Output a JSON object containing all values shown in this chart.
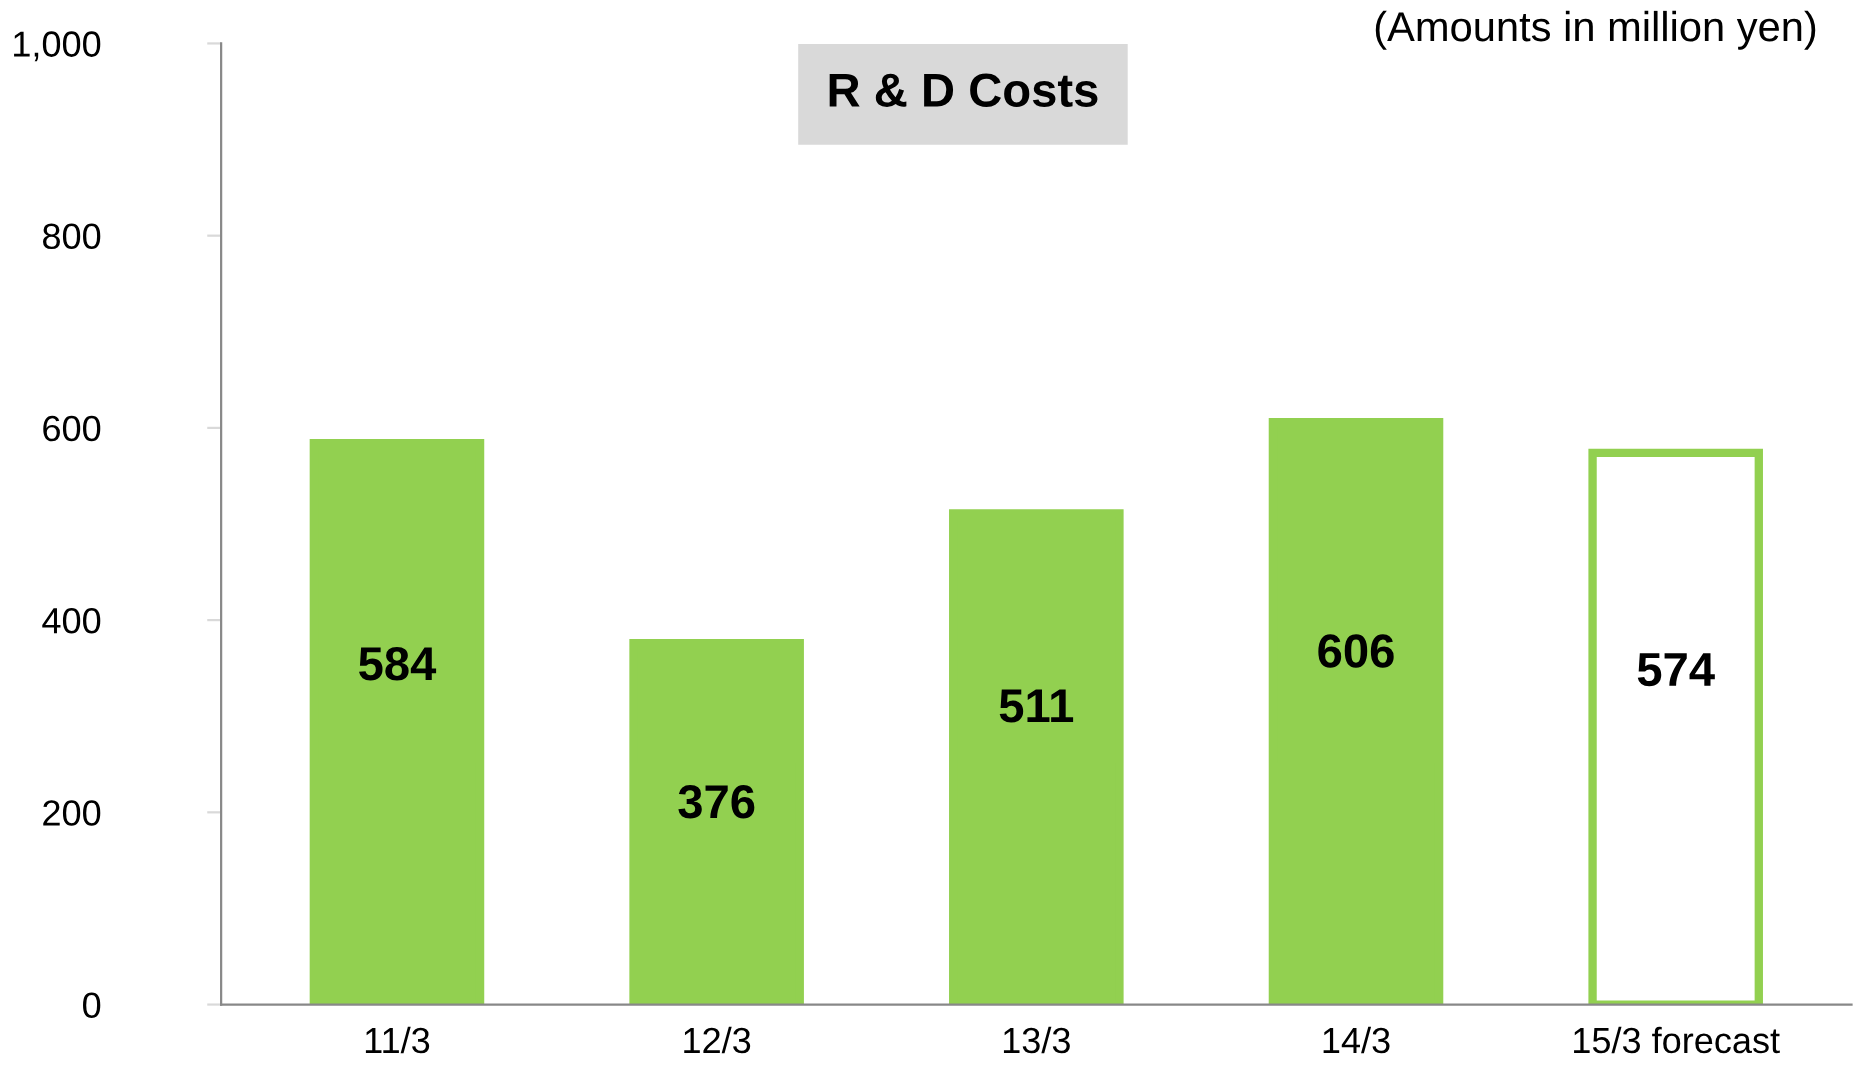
{
  "chart_data": {
    "type": "bar",
    "title": "R & D Costs",
    "subtitle": "(Amounts in million yen)",
    "categories": [
      "11/3",
      "12/3",
      "13/3",
      "14/3",
      "15/3 forecast"
    ],
    "values": [
      584,
      376,
      511,
      606,
      574
    ],
    "colors": [
      "#92d050",
      "#92d050",
      "#92d050",
      "#92d050",
      "#ffffff"
    ],
    "ylim": [
      0,
      1000
    ],
    "yticks": [
      0,
      200,
      400,
      600,
      800,
      {
        "value": 1000,
        "label": "1,000"
      }
    ],
    "grid": false,
    "legend": false,
    "data_labels": true
  }
}
